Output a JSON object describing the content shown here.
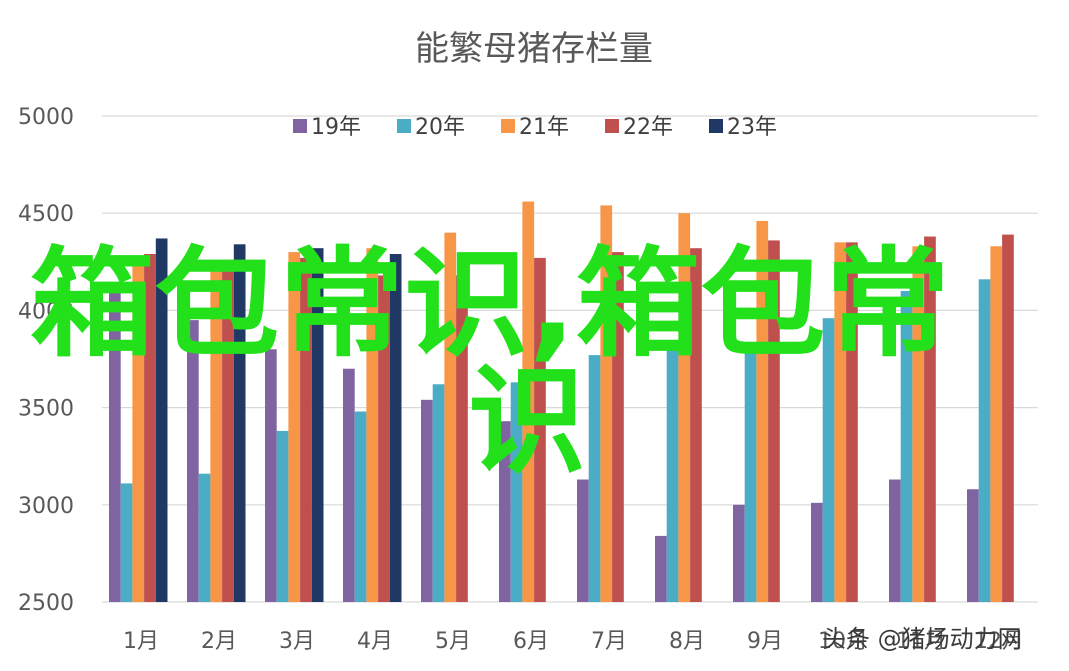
{
  "chart_data": {
    "type": "bar",
    "title": "能繁母猪存栏量",
    "categories": [
      "1月",
      "2月",
      "3月",
      "4月",
      "5月",
      "6月",
      "7月",
      "8月",
      "9月",
      "10月",
      "11月",
      "12月"
    ],
    "ylim": [
      2500,
      5000
    ],
    "yticks": [
      2500,
      3000,
      3500,
      4000,
      4500,
      5000
    ],
    "grid": true,
    "legend_position": "top",
    "series": [
      {
        "name": "19年",
        "color": "#8064a2",
        "values": [
          4100,
          3950,
          3800,
          3700,
          3540,
          3430,
          3130,
          2840,
          3000,
          3010,
          3130,
          3080
        ]
      },
      {
        "name": "20年",
        "color": "#4bacc6",
        "values": [
          3110,
          3160,
          3380,
          3480,
          3620,
          3630,
          3770,
          3820,
          3830,
          3960,
          4100,
          4160
        ]
      },
      {
        "name": "21年",
        "color": "#f79646",
        "values": [
          4280,
          4250,
          4300,
          4320,
          4400,
          4560,
          4540,
          4500,
          4460,
          4350,
          4330,
          4330
        ]
      },
      {
        "name": "22年",
        "color": "#c0504d",
        "values": [
          4290,
          4260,
          4270,
          4180,
          4180,
          4270,
          4300,
          4320,
          4360,
          4350,
          4380,
          4390
        ]
      },
      {
        "name": "23年",
        "color": "#1f3864",
        "values": [
          4370,
          4340,
          4320,
          4290,
          null,
          null,
          null,
          null,
          null,
          null,
          null,
          null
        ]
      }
    ]
  },
  "overlay": {
    "line1": "箱包常识,箱包常",
    "line2": "识"
  },
  "watermark": {
    "text": "头条 @猪场动力网"
  }
}
